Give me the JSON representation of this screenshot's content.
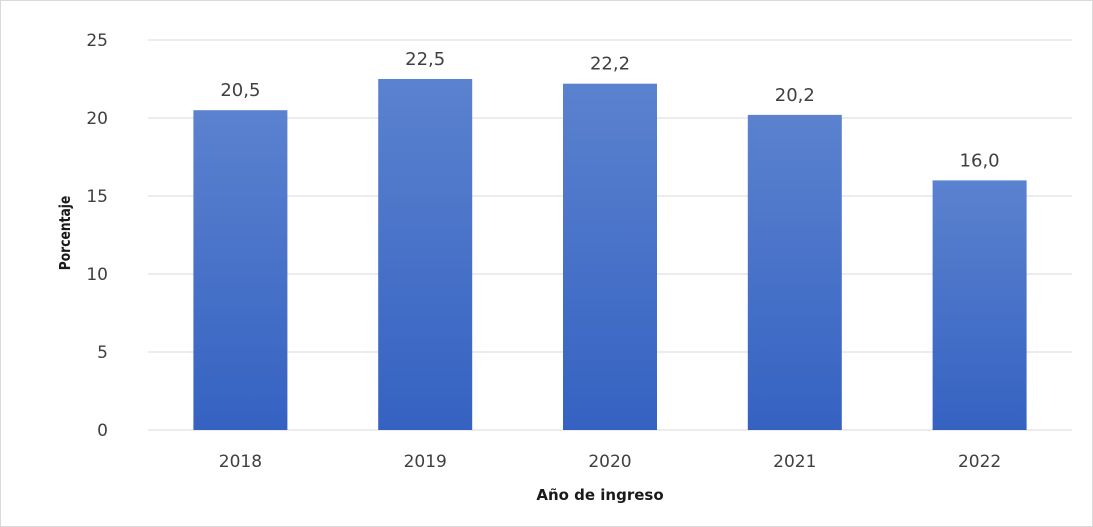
{
  "chart_data": {
    "type": "bar",
    "categories": [
      "2018",
      "2019",
      "2020",
      "2021",
      "2022"
    ],
    "values": [
      20.5,
      22.5,
      22.2,
      20.2,
      16.0
    ],
    "data_labels": [
      "20,5",
      "22,5",
      "22,2",
      "20,2",
      "16,0"
    ],
    "xlabel": "Año de ingreso",
    "ylabel": "Porcentaje",
    "ylim": [
      0,
      25
    ],
    "yticks": [
      0,
      5,
      10,
      15,
      20,
      25
    ],
    "ytick_labels": [
      "0",
      "5",
      "10",
      "15",
      "20",
      "25"
    ],
    "grid": true,
    "legend": "none",
    "colors": {
      "bar_top": "#5b82cf",
      "bar_bottom": "#3562c2",
      "grid": "#d9d9d9",
      "text": "#404040"
    }
  }
}
